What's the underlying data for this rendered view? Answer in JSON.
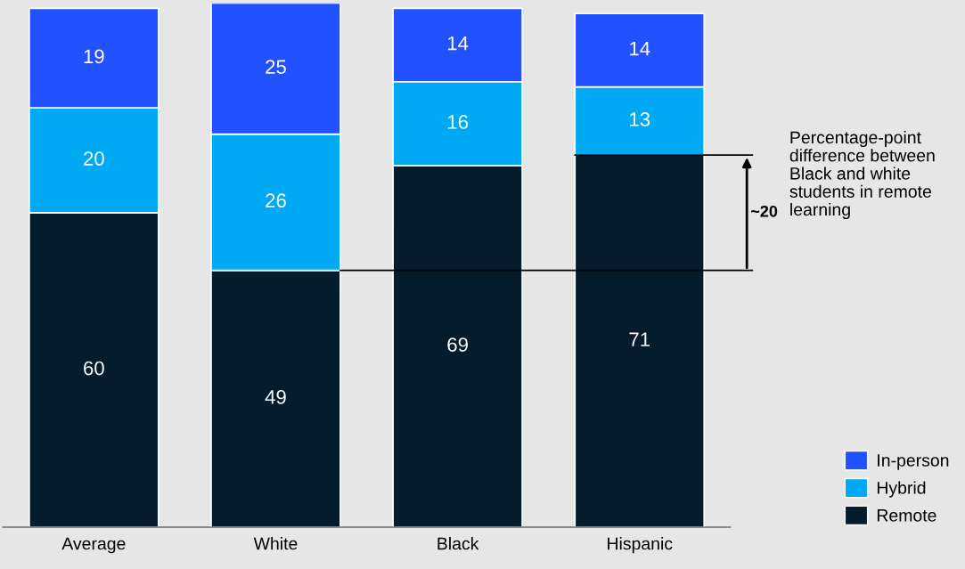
{
  "chart_data": {
    "type": "bar",
    "stacked": true,
    "data_labels": true,
    "legend": "bottom right",
    "grid": false,
    "categories": [
      "Average",
      "White",
      "Black",
      "Hispanic"
    ],
    "series": [
      {
        "name": "Remote",
        "color": "#051c2c",
        "values": [
          60,
          49,
          69,
          71
        ]
      },
      {
        "name": "Hybrid",
        "color": "#00a9f4",
        "values": [
          20,
          26,
          16,
          13
        ]
      },
      {
        "name": "In-person",
        "color": "#2251ff",
        "values": [
          19,
          25,
          14,
          14
        ]
      }
    ],
    "ref_lines": [
      {
        "axis": "y",
        "value": 49,
        "color": "#000000"
      },
      {
        "axis": "y",
        "value": 71,
        "color": "#000000"
      }
    ],
    "annotations": [
      "~20",
      "Percentage-point difference between Black and white students in remote learning"
    ]
  }
}
